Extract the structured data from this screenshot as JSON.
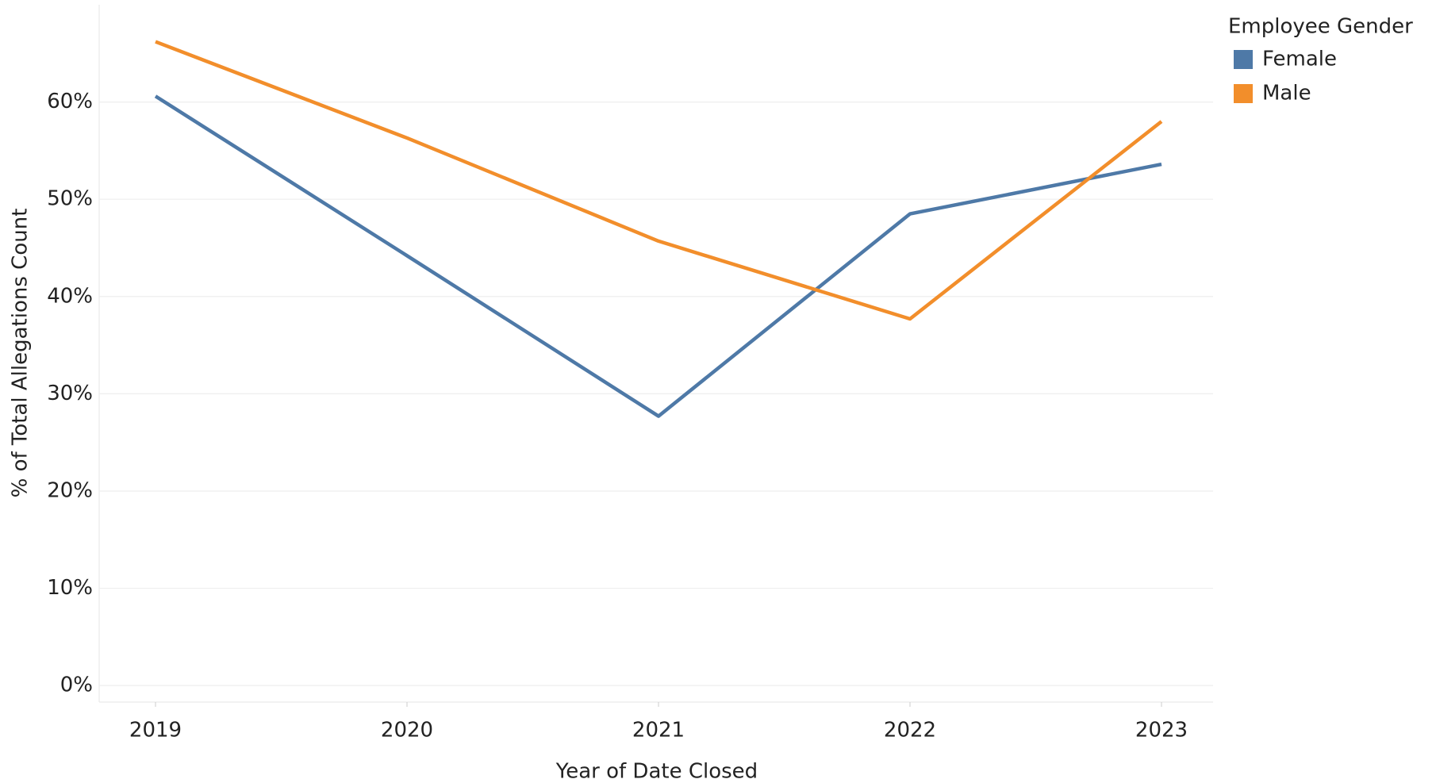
{
  "chart_data": {
    "type": "line",
    "x_label": "Year of Date Closed",
    "y_label": "% of Total Allegations Count",
    "categories": [
      "2019",
      "2020",
      "2021",
      "2022",
      "2023"
    ],
    "legend_title": "Employee Gender",
    "legend_position": "right",
    "series": [
      {
        "name": "Female",
        "color": "#4e79a7",
        "values": [
          60.6,
          44.2,
          27.7,
          48.5,
          53.6
        ]
      },
      {
        "name": "Male",
        "color": "#f28e2b",
        "values": [
          66.2,
          56.3,
          45.7,
          37.7,
          58.0
        ]
      }
    ],
    "ylim": [
      -1.7,
      70
    ],
    "yticks": [
      {
        "value": 0,
        "label": "0%"
      },
      {
        "value": 10,
        "label": "10%"
      },
      {
        "value": 20,
        "label": "20%"
      },
      {
        "value": 30,
        "label": "30%"
      },
      {
        "value": 40,
        "label": "40%"
      },
      {
        "value": 50,
        "label": "50%"
      },
      {
        "value": 60,
        "label": "60%"
      }
    ],
    "grid": true
  }
}
